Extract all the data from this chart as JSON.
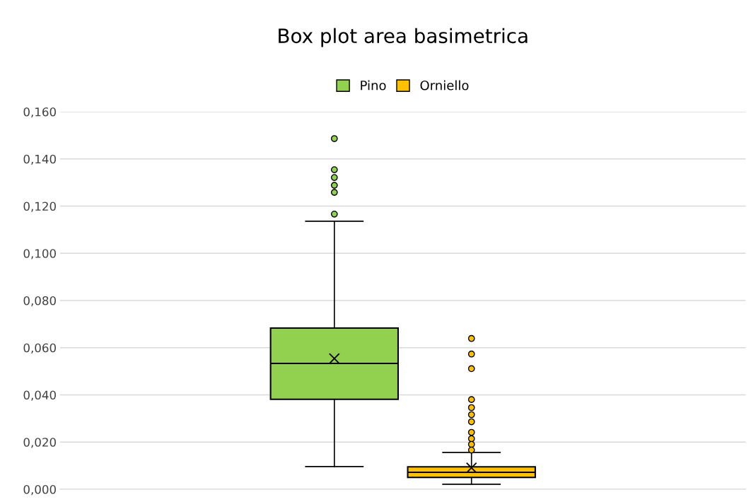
{
  "chart_data": {
    "type": "box",
    "title": "Box plot area basimetrica",
    "categories": [
      null
    ],
    "series": [
      {
        "name": "Pino",
        "color": "#92d050",
        "boxes": [
          {
            "low": 0.0096,
            "q1": 0.0381,
            "median": 0.0533,
            "q3": 0.0683,
            "high": 0.1136,
            "mean": 0.0554,
            "outliers": [
              0.1486,
              0.1354,
              0.1321,
              0.1288,
              0.1258,
              0.1166
            ]
          }
        ]
      },
      {
        "name": "Orniello",
        "color": "#ffc000",
        "boxes": [
          {
            "low": 0.0021,
            "q1": 0.005,
            "median": 0.0072,
            "q3": 0.0095,
            "high": 0.0156,
            "mean": 0.0091,
            "outliers": [
              0.0639,
              0.0573,
              0.0511,
              0.038,
              0.0346,
              0.0316,
              0.0286,
              0.0241,
              0.0214,
              0.019,
              0.0166
            ]
          }
        ]
      }
    ],
    "ylim": [
      0,
      0.16
    ],
    "yticks": [
      {
        "value": 0,
        "label": "0,000"
      },
      {
        "value": 0.02,
        "label": "0,020"
      },
      {
        "value": 0.04,
        "label": "0,040"
      },
      {
        "value": 0.06,
        "label": "0,060"
      },
      {
        "value": 0.08,
        "label": "0,080"
      },
      {
        "value": 0.1,
        "label": "0,100"
      },
      {
        "value": 0.12,
        "label": "0,120"
      },
      {
        "value": 0.14,
        "label": "0,140"
      },
      {
        "value": 0.16,
        "label": "0,160"
      }
    ],
    "grid": "y",
    "legend": "top",
    "marker": "circle"
  }
}
